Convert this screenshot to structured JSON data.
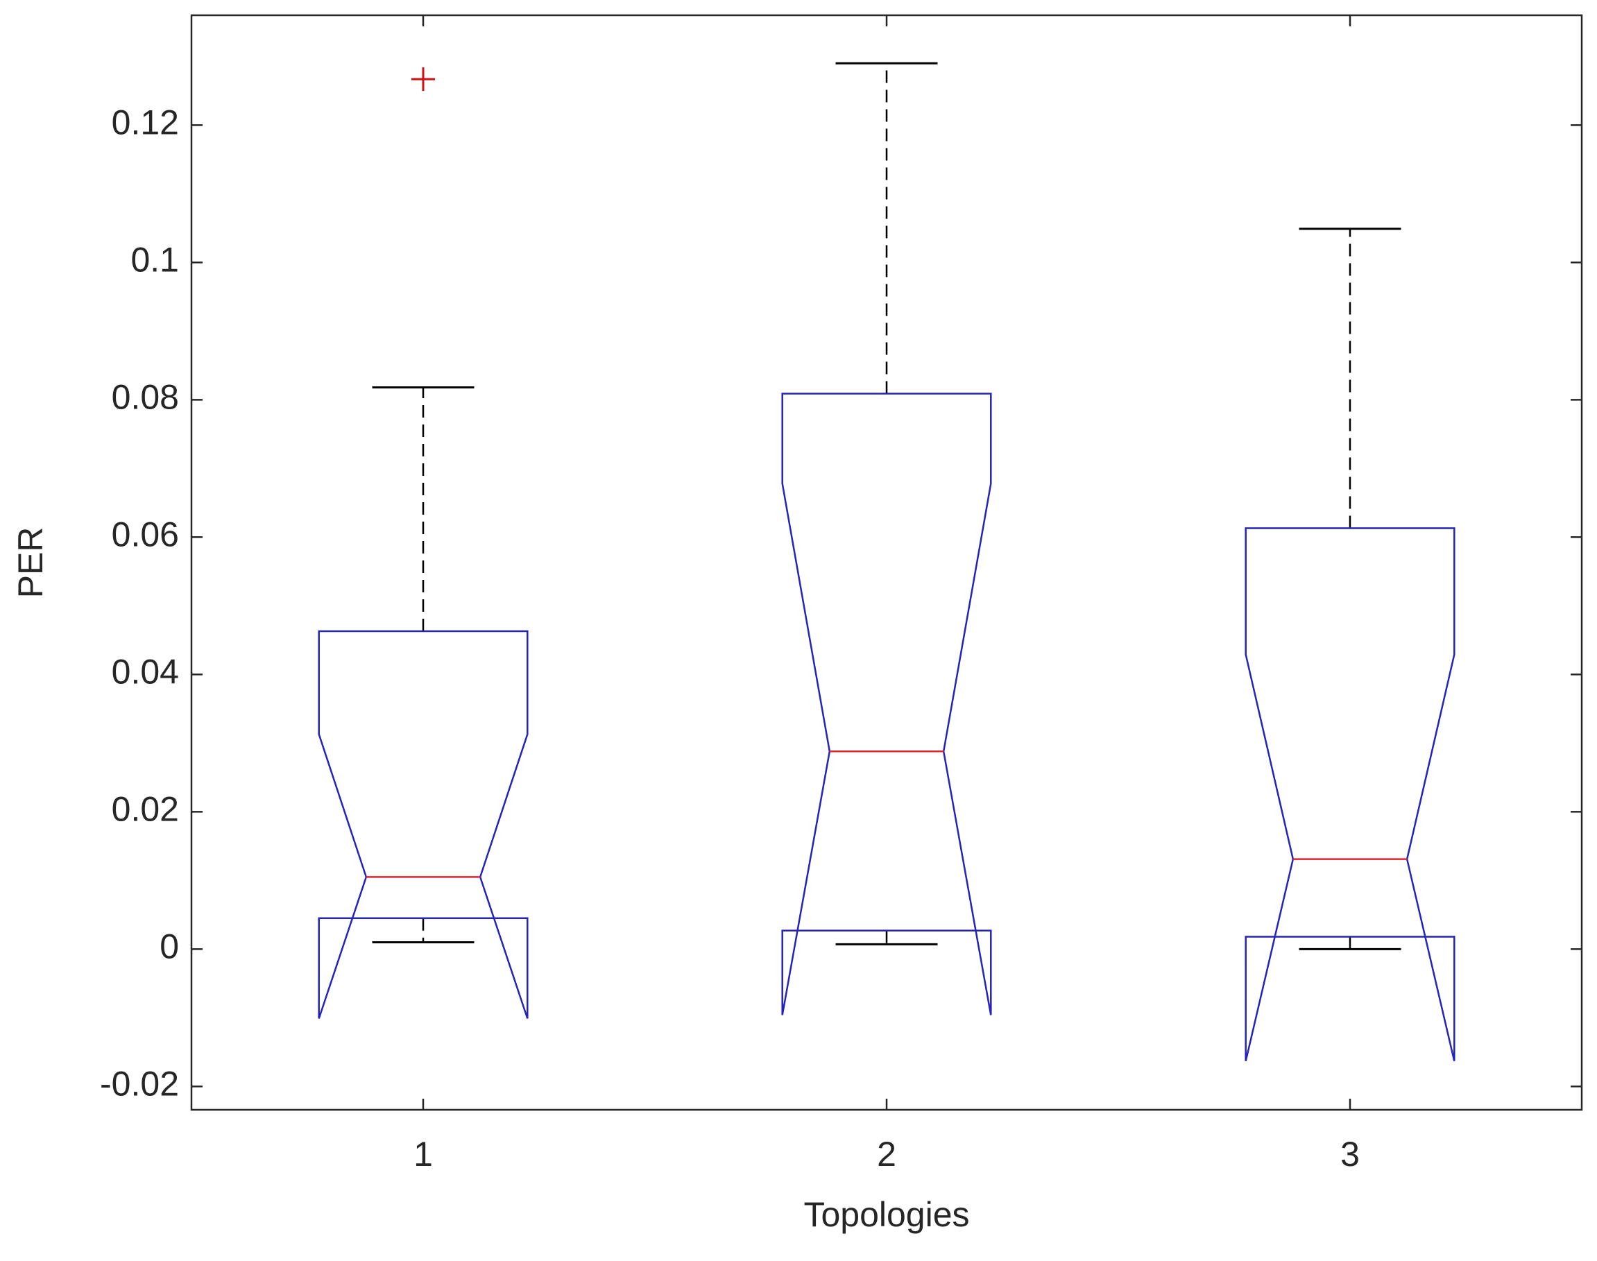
{
  "chart_data": {
    "type": "boxplot",
    "xlabel": "Topologies",
    "ylabel": "PER",
    "categories": [
      "1",
      "2",
      "3"
    ],
    "boxes": [
      {
        "whisker_low": 0.001,
        "q1": 0.0045,
        "median": 0.0105,
        "q3": 0.0463,
        "whisker_high": 0.0818,
        "notch_low": -0.0101,
        "notch_high": 0.0313,
        "outliers": [
          0.1267
        ]
      },
      {
        "whisker_low": 0.0007,
        "q1": 0.0027,
        "median": 0.0288,
        "q3": 0.0809,
        "whisker_high": 0.129,
        "notch_low": -0.0096,
        "notch_high": 0.0678,
        "outliers": []
      },
      {
        "whisker_low": 0,
        "q1": 0.0018,
        "median": 0.0131,
        "q3": 0.0613,
        "whisker_high": 0.1049,
        "notch_low": -0.0163,
        "notch_high": 0.0429,
        "outliers": []
      }
    ],
    "box_color": "#2424b8",
    "median_color": "#e0242a",
    "whisker_color": "#000000",
    "outlier_color": "#d01010",
    "xlim": [
      0.5,
      3.5
    ],
    "ylim": [
      -0.0234,
      0.136
    ],
    "yticks": [
      -0.02,
      0,
      0.02,
      0.04,
      0.06,
      0.08,
      0.1,
      0.12
    ]
  }
}
